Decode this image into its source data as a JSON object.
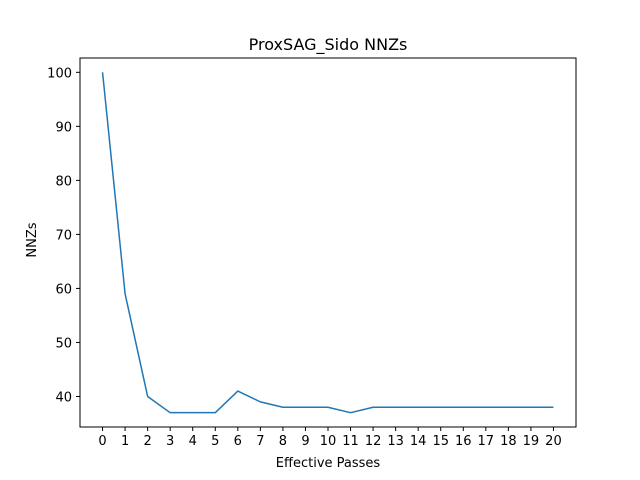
{
  "chart_data": {
    "type": "line",
    "title": "ProxSAG_Sido NNZs",
    "xlabel": "Effective Passes",
    "ylabel": "NNZs",
    "x": [
      0,
      1,
      2,
      3,
      4,
      5,
      6,
      7,
      8,
      9,
      10,
      11,
      12,
      13,
      14,
      15,
      16,
      17,
      18,
      19,
      20
    ],
    "series": [
      {
        "values": [
          100,
          59,
          40,
          37,
          37,
          37,
          41,
          39,
          38,
          38,
          38,
          37,
          38,
          38,
          38,
          38,
          38,
          38,
          38,
          38,
          38
        ],
        "color": "#1f77b4"
      }
    ],
    "xticks": [
      "0",
      "1",
      "2",
      "3",
      "4",
      "5",
      "6",
      "7",
      "8",
      "9",
      "10",
      "11",
      "12",
      "13",
      "14",
      "15",
      "16",
      "17",
      "18",
      "19",
      "20"
    ],
    "yticks": [
      "40",
      "50",
      "60",
      "70",
      "80",
      "90",
      "100"
    ],
    "ytick_values": [
      40,
      50,
      60,
      70,
      80,
      90,
      100
    ],
    "xlim": [
      -1,
      21
    ],
    "ylim": [
      34.35,
      102.65
    ],
    "grid": false,
    "legend": "none"
  }
}
